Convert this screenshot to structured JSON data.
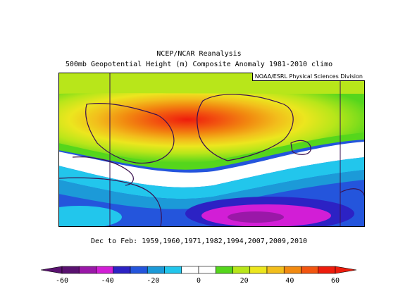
{
  "title_line1": "NCEP/NCAR Reanalysis",
  "title_line2": "500mb Geopotential Height (m) Composite Anomaly 1981-2010 climo",
  "credit": "NOAA/ESRL Physical Sciences Division",
  "footer": "Dec to Feb: 1959,1960,1971,1982,1994,2007,2009,2010",
  "colorbar": {
    "min": -60,
    "max": 60,
    "step": 10,
    "tick_labels": [
      "-60",
      "-40",
      "-20",
      "0",
      "20",
      "40",
      "60"
    ],
    "tick_values": [
      -60,
      -40,
      -20,
      0,
      20,
      40,
      60
    ],
    "colors": [
      "#5a1270",
      "#9a18a8",
      "#d21ed6",
      "#2c22c4",
      "#2455dc",
      "#1c9ad8",
      "#22c6ec",
      "#ffffff",
      "#ffffff",
      "#55d61c",
      "#b8e61a",
      "#ece61e",
      "#f2be1c",
      "#f28a10",
      "#f25510",
      "#ee1c0c"
    ]
  },
  "map": {
    "region": "North Atlantic / Greenland",
    "anomaly_fields": [
      {
        "name": "greenland-positive-anomaly",
        "peak": 60
      },
      {
        "name": "mid-atlantic-negative-anomaly",
        "peak": -50
      }
    ]
  }
}
